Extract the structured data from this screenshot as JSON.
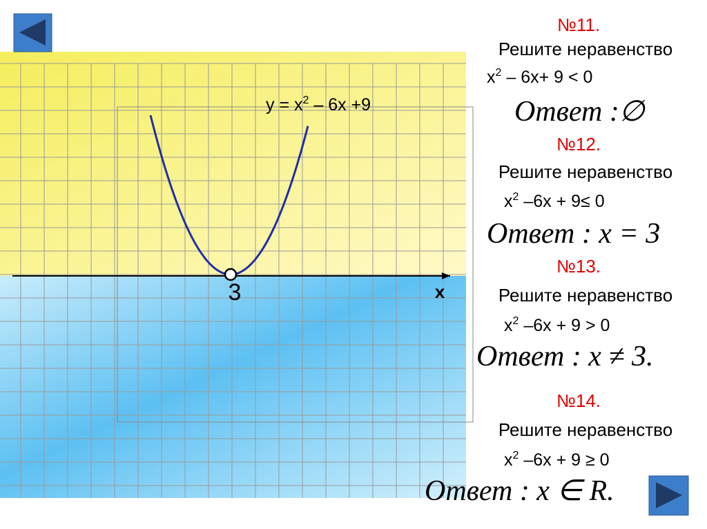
{
  "graph": {
    "function": {
      "base": "y = x",
      "exp": "2",
      "rest": " – 6x +9"
    },
    "vertex_label": "3",
    "axis_label": "x"
  },
  "problems": [
    {
      "number": "№11.",
      "prompt": "Решите неравенство",
      "inequality": {
        "base": "x",
        "exp": "2",
        "rest": " – 6x+ 9 < 0"
      },
      "answer": "Ответ :∅"
    },
    {
      "number": "№12.",
      "prompt": "Решите неравенство",
      "inequality": {
        "base": "x",
        "exp": "2",
        "rest": " –6x + 9≤ 0"
      },
      "answer": "Ответ : x = 3"
    },
    {
      "number": "№13.",
      "prompt": "Решите неравенство",
      "inequality": {
        "base": "x",
        "exp": "2",
        "rest": " –6x + 9 > 0"
      },
      "answer": "Ответ : x ≠ 3."
    },
    {
      "number": "№14.",
      "prompt": "Решите неравенство",
      "inequality": {
        "base": "x",
        "exp": "2",
        "rest": " –6x + 9 ≥ 0"
      },
      "answer": "Ответ : x ∈ R."
    }
  ]
}
